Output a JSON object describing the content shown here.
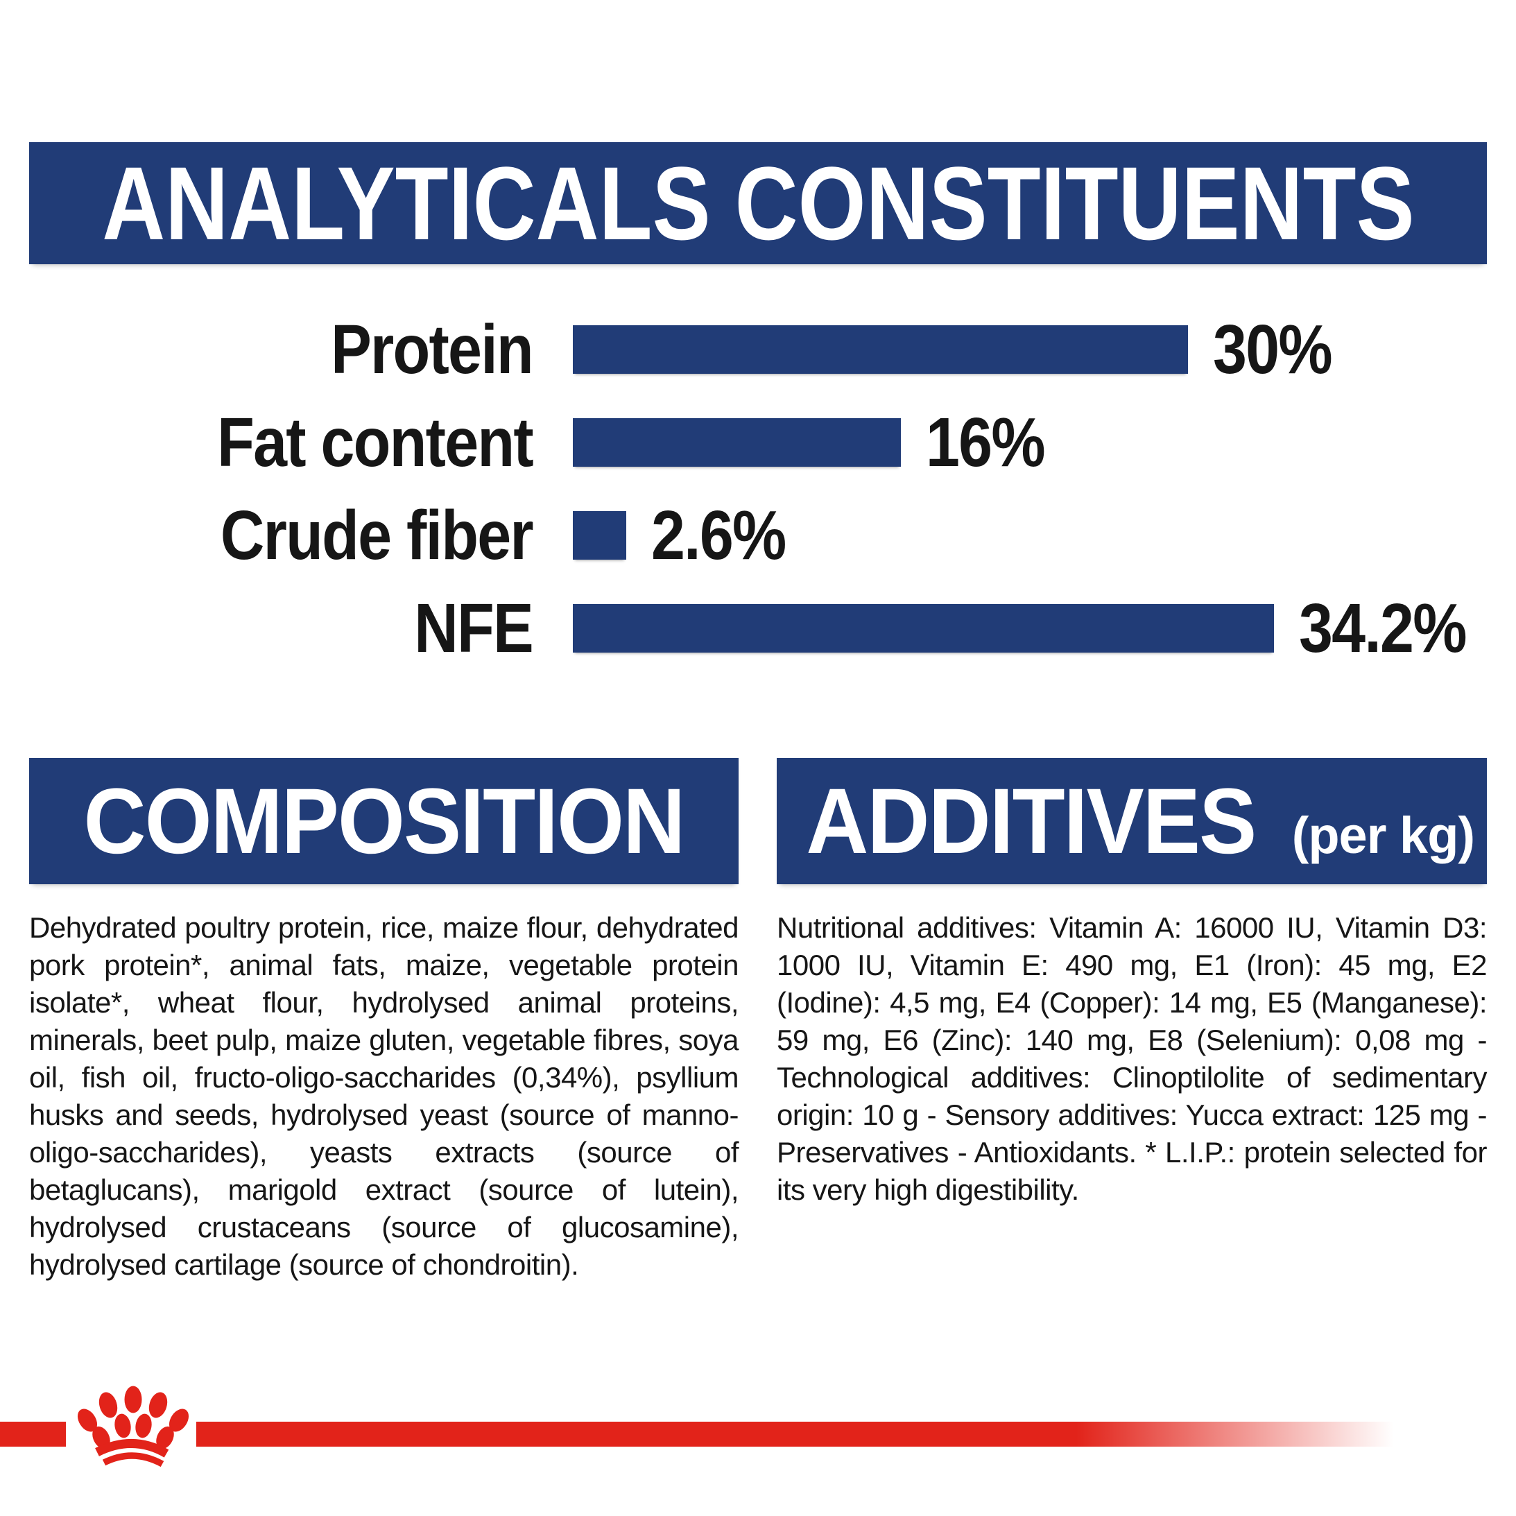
{
  "colors": {
    "navy": "#213c77",
    "red": "#e2231a",
    "text": "#161616",
    "background": "#ffffff"
  },
  "header": {
    "title": "ANALYTICALS CONSTITUENTS"
  },
  "chart_data": {
    "type": "bar",
    "orientation": "horizontal",
    "title": "ANALYTICALS CONSTITUENTS",
    "unit": "%",
    "categories": [
      "Protein",
      "Fat content",
      "Crude fiber",
      "NFE"
    ],
    "values": [
      30,
      16,
      2.6,
      34.2
    ],
    "value_labels": [
      "30%",
      "16%",
      "2.6%",
      "34.2%"
    ],
    "xlim": [
      0,
      36
    ],
    "grid": false,
    "legend": false,
    "bar_color": "#213c77"
  },
  "composition": {
    "title": "COMPOSITION",
    "body": "Dehydrated poultry protein, rice, maize flour, dehydrated pork protein*, animal fats, maize, vegetable protein isolate*, wheat flour, hydrolysed animal proteins, minerals, beet pulp, maize gluten, vegetable fibres, soya oil, fish oil, fructo-oligo-saccharides (0,34%), psyllium husks and seeds, hydrolysed yeast (source of manno-oligo-saccharides), yeasts extracts (source of betaglucans), marigold extract (source of lutein), hydrolysed crustaceans (source of glucosamine), hydrolysed cartilage (source of chondroitin)."
  },
  "additives": {
    "title": "ADDITIVES",
    "title_suffix": "(per kg)",
    "body": "Nutritional additives: Vitamin A: 16000 IU, Vitamin D3: 1000 IU, Vitamin E: 490 mg, E1 (Iron): 45 mg, E2 (Iodine): 4,5 mg, E4 (Copper): 14 mg, E5 (Manganese): 59 mg, E6 (Zinc): 140 mg, E8 (Selenium): 0,08 mg - Technological additives: Clinoptilolite of sedimentary origin: 10 g - Sensory additives: Yucca extract: 125 mg - Preservatives - Antioxidants. * L.I.P.: protein selected for its very high digestibility."
  },
  "footer": {
    "logo": "royal-canin-crown"
  }
}
